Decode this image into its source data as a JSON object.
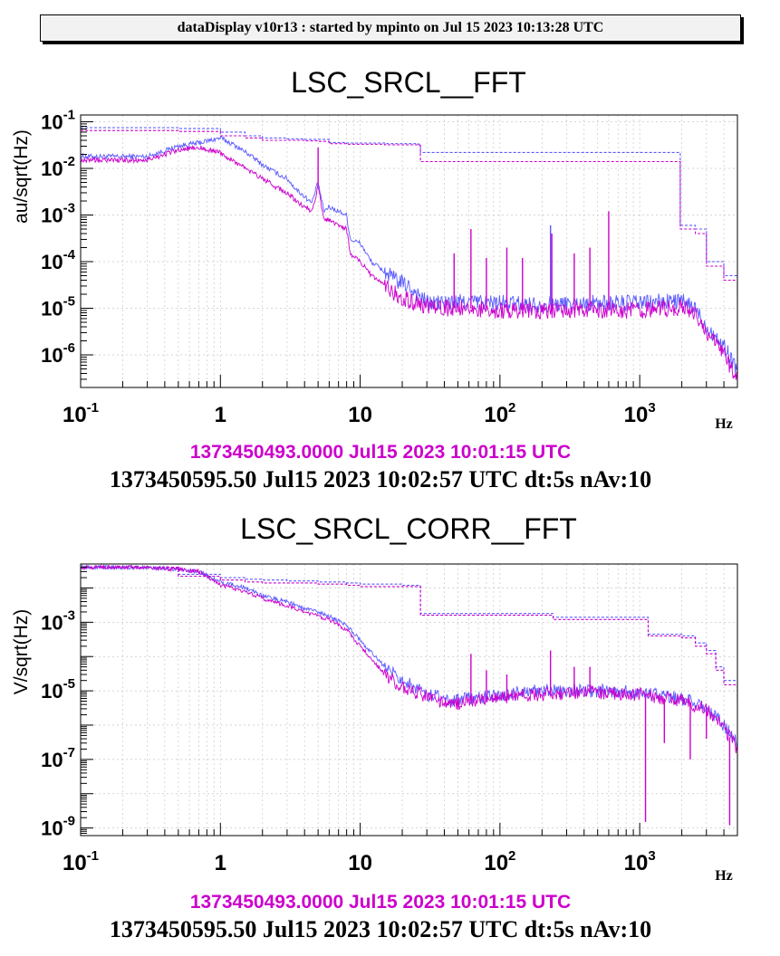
{
  "header": {
    "text": "dataDisplay v10r13 : started by mpinto on Jul 15 2023 10:13:28 UTC"
  },
  "colors": {
    "ref": "#5a5aff",
    "cur": "#cc00cc",
    "grid": "#c8c8c8"
  },
  "chart_data": [
    {
      "type": "line",
      "title": "LSC_SRCL__FFT",
      "ylabel": "au/sqrt(Hz)",
      "xunit": "Hz",
      "xscale": "log",
      "yscale": "log",
      "xlim": [
        0.1,
        5000
      ],
      "ylim": [
        2e-07,
        0.14
      ],
      "grid": true,
      "x_ticks": [
        {
          "value": 0.1,
          "base": "10",
          "exp": "-1"
        },
        {
          "value": 1,
          "base": "1",
          "exp": ""
        },
        {
          "value": 10,
          "base": "10",
          "exp": ""
        },
        {
          "value": 100,
          "base": "10",
          "exp": "2"
        },
        {
          "value": 1000,
          "base": "10",
          "exp": "3"
        }
      ],
      "y_ticks": [
        {
          "value": 0.1,
          "base": "10",
          "exp": "-1"
        },
        {
          "value": 0.01,
          "base": "10",
          "exp": "-2"
        },
        {
          "value": 0.001,
          "base": "10",
          "exp": "-3"
        },
        {
          "value": 0.0001,
          "base": "10",
          "exp": "-4"
        },
        {
          "value": 1e-05,
          "base": "10",
          "exp": "-5"
        },
        {
          "value": 1e-06,
          "base": "10",
          "exp": "-6"
        }
      ],
      "series": [
        {
          "color": "#5a5aff",
          "dash": false,
          "noise": 0.18,
          "x": [
            0.1,
            0.3,
            0.5,
            0.7,
            1,
            1.3,
            1.6,
            2,
            2.5,
            3,
            3.5,
            4,
            4.5,
            5,
            5.5,
            6,
            7,
            8,
            8.5,
            10,
            12,
            15,
            18,
            22,
            26,
            30,
            40,
            60,
            100,
            200,
            500,
            1000,
            1500,
            2000,
            2500,
            3000,
            3500,
            4000,
            5000
          ],
          "y": [
            0.018,
            0.018,
            0.03,
            0.035,
            0.045,
            0.03,
            0.02,
            0.012,
            0.008,
            0.006,
            0.0035,
            0.0025,
            0.0018,
            0.005,
            0.0012,
            0.0015,
            0.0012,
            0.001,
            0.0003,
            0.00025,
            0.0001,
            6e-05,
            4e-05,
            3e-05,
            2e-05,
            1.3e-05,
            1.3e-05,
            1.4e-05,
            1.3e-05,
            1.2e-05,
            1.3e-05,
            1.3e-05,
            1.4e-05,
            1.4e-05,
            1e-05,
            4e-06,
            2.5e-06,
            1.5e-06,
            5e-07
          ]
        },
        {
          "color": "#cc00cc",
          "dash": false,
          "noise": 0.18,
          "x": [
            0.1,
            0.3,
            0.5,
            0.7,
            1,
            1.3,
            1.6,
            2,
            2.5,
            3,
            3.5,
            4,
            4.5,
            5,
            5.5,
            6,
            7,
            8,
            8.5,
            10,
            12,
            15,
            18,
            22,
            26,
            30,
            40,
            60,
            100,
            200,
            500,
            1000,
            1500,
            2000,
            2500,
            3000,
            3500,
            4000,
            5000
          ],
          "y": [
            0.015,
            0.015,
            0.025,
            0.028,
            0.022,
            0.013,
            0.009,
            0.006,
            0.004,
            0.003,
            0.002,
            0.0015,
            0.0012,
            0.004,
            0.0008,
            0.0008,
            0.0006,
            0.0005,
            0.00015,
            0.0001,
            5e-05,
            3e-05,
            2e-05,
            1.5e-05,
            1.2e-05,
            1.1e-05,
            1e-05,
            1e-05,
            9e-06,
            9e-06,
            9e-06,
            9e-06,
            1e-05,
            1e-05,
            8e-06,
            3e-06,
            1.8e-06,
            1e-06,
            3e-07
          ]
        },
        {
          "color": "#5a5aff",
          "dash": true,
          "noise": 0,
          "x": [
            0.1,
            0.3,
            0.5,
            1,
            1.5,
            2,
            3,
            4,
            5,
            6,
            8,
            10,
            15,
            20,
            26,
            27,
            100,
            1000,
            1900,
            1950,
            2500,
            3000,
            4000,
            5000
          ],
          "y": [
            0.075,
            0.075,
            0.072,
            0.06,
            0.05,
            0.045,
            0.043,
            0.042,
            0.042,
            0.036,
            0.035,
            0.035,
            0.034,
            0.034,
            0.033,
            0.022,
            0.022,
            0.022,
            0.022,
            0.0006,
            0.0005,
            0.0001,
            5e-05,
            2e-05
          ]
        },
        {
          "color": "#cc00cc",
          "dash": true,
          "noise": 0,
          "x": [
            0.1,
            0.3,
            0.5,
            1,
            1.5,
            2,
            3,
            4,
            5,
            6,
            8,
            10,
            15,
            20,
            26,
            27,
            100,
            1000,
            1900,
            1950,
            2500,
            3000,
            4000,
            5000
          ],
          "y": [
            0.065,
            0.065,
            0.062,
            0.05,
            0.045,
            0.04,
            0.04,
            0.039,
            0.038,
            0.034,
            0.033,
            0.033,
            0.032,
            0.032,
            0.031,
            0.014,
            0.014,
            0.014,
            0.014,
            0.0005,
            0.0004,
            8e-05,
            4e-05,
            1.5e-05
          ]
        }
      ],
      "spikes": [
        {
          "x": 5,
          "y": 0.028,
          "series": 1
        },
        {
          "x": 47,
          "y": 0.00015,
          "series": 1
        },
        {
          "x": 62,
          "y": 0.0005,
          "series": 1
        },
        {
          "x": 80,
          "y": 0.00012,
          "series": 1
        },
        {
          "x": 112,
          "y": 0.0002,
          "series": 1
        },
        {
          "x": 145,
          "y": 0.00012,
          "series": 1
        },
        {
          "x": 230,
          "y": 0.0006,
          "series": 0
        },
        {
          "x": 235,
          "y": 0.0004,
          "series": 1
        },
        {
          "x": 340,
          "y": 0.00015,
          "series": 1
        },
        {
          "x": 440,
          "y": 0.0002,
          "series": 1
        },
        {
          "x": 600,
          "y": 0.0012,
          "series": 1
        }
      ],
      "timestamps": [
        "1373450493.0000 Jul15 2023 10:01:15 UTC",
        "1373450595.50 Jul15 2023 10:02:57 UTC dt:5s nAv:10"
      ]
    },
    {
      "type": "line",
      "title": "LSC_SRCL_CORR__FFT",
      "ylabel": "V/sqrt(Hz)",
      "xunit": "Hz",
      "xscale": "log",
      "yscale": "log",
      "xlim": [
        0.1,
        5000
      ],
      "ylim": [
        6e-10,
        0.05
      ],
      "grid": true,
      "x_ticks": [
        {
          "value": 0.1,
          "base": "10",
          "exp": "-1"
        },
        {
          "value": 1,
          "base": "1",
          "exp": ""
        },
        {
          "value": 10,
          "base": "10",
          "exp": ""
        },
        {
          "value": 100,
          "base": "10",
          "exp": "2"
        },
        {
          "value": 1000,
          "base": "10",
          "exp": "3"
        }
      ],
      "y_ticks": [
        {
          "value": 0.001,
          "base": "10",
          "exp": "-3"
        },
        {
          "value": 1e-05,
          "base": "10",
          "exp": "-5"
        },
        {
          "value": 1e-07,
          "base": "10",
          "exp": "-7"
        },
        {
          "value": 1e-09,
          "base": "10",
          "exp": "-9"
        }
      ],
      "series": [
        {
          "color": "#5a5aff",
          "dash": false,
          "noise": 0.2,
          "x": [
            0.1,
            0.3,
            0.5,
            0.7,
            1,
            1.5,
            2,
            3,
            4,
            5,
            6,
            8,
            10,
            15,
            20,
            30,
            45,
            60,
            100,
            200,
            500,
            1000,
            1200,
            1500,
            2000,
            3000,
            4000,
            5000
          ],
          "y": [
            0.04,
            0.04,
            0.035,
            0.03,
            0.015,
            0.01,
            0.006,
            0.004,
            0.0025,
            0.002,
            0.0015,
            0.0008,
            0.0003,
            5e-05,
            2e-05,
            8e-06,
            5e-06,
            6e-06,
            8e-06,
            1e-05,
            1e-05,
            9.5e-06,
            8.5e-06,
            7e-06,
            6e-06,
            3.5e-06,
            1e-06,
            3e-07
          ]
        },
        {
          "color": "#cc00cc",
          "dash": false,
          "noise": 0.2,
          "x": [
            0.1,
            0.3,
            0.5,
            0.7,
            1,
            1.5,
            2,
            3,
            4,
            5,
            6,
            8,
            10,
            15,
            20,
            30,
            45,
            60,
            100,
            200,
            500,
            1000,
            1200,
            1500,
            2000,
            3000,
            4000,
            5000
          ],
          "y": [
            0.04,
            0.04,
            0.035,
            0.03,
            0.012,
            0.008,
            0.005,
            0.003,
            0.002,
            0.0015,
            0.0012,
            0.0006,
            0.0002,
            3e-05,
            1.2e-05,
            7e-06,
            4e-06,
            5e-06,
            6.5e-06,
            8e-06,
            9e-06,
            8e-06,
            7e-06,
            6e-06,
            5e-06,
            3e-06,
            8e-07,
            2e-07
          ]
        },
        {
          "color": "#5a5aff",
          "dash": true,
          "noise": 0,
          "x": [
            0.1,
            0.3,
            0.5,
            1,
            1.5,
            2,
            3,
            5,
            8,
            10,
            20,
            26,
            27,
            100,
            230,
            240,
            1100,
            1150,
            2000,
            2500,
            3000,
            3500,
            4000,
            5000
          ],
          "y": [
            0.04,
            0.04,
            0.025,
            0.02,
            0.018,
            0.017,
            0.016,
            0.015,
            0.014,
            0.013,
            0.012,
            0.012,
            0.0018,
            0.0018,
            0.0018,
            0.0014,
            0.0014,
            0.00045,
            0.0004,
            0.00025,
            0.00015,
            5e-05,
            2e-05,
            6e-06
          ]
        },
        {
          "color": "#cc00cc",
          "dash": true,
          "noise": 0,
          "x": [
            0.1,
            0.3,
            0.5,
            1,
            1.5,
            2,
            3,
            5,
            8,
            10,
            20,
            26,
            27,
            100,
            230,
            240,
            1100,
            1150,
            2000,
            2500,
            3000,
            3500,
            4000,
            5000
          ],
          "y": [
            0.04,
            0.04,
            0.022,
            0.017,
            0.015,
            0.014,
            0.014,
            0.013,
            0.012,
            0.011,
            0.011,
            0.011,
            0.0016,
            0.0016,
            0.0016,
            0.0012,
            0.0012,
            0.0004,
            0.00035,
            0.0002,
            0.00012,
            4e-05,
            1.5e-05,
            5e-06
          ]
        }
      ],
      "spikes": [
        {
          "x": 62,
          "y": 0.00012,
          "series": 1
        },
        {
          "x": 80,
          "y": 4e-05,
          "series": 1
        },
        {
          "x": 112,
          "y": 3e-05,
          "series": 1
        },
        {
          "x": 230,
          "y": 0.00015,
          "series": 1
        },
        {
          "x": 340,
          "y": 5e-05,
          "series": 1
        },
        {
          "x": 440,
          "y": 5e-05,
          "series": 1
        },
        {
          "x": 1100,
          "y": 1.5e-09,
          "series": 1
        },
        {
          "x": 1500,
          "y": 3e-07,
          "series": 1
        },
        {
          "x": 2300,
          "y": 1e-07,
          "series": 1
        },
        {
          "x": 3000,
          "y": 4e-07,
          "series": 1
        },
        {
          "x": 4400,
          "y": 1.2e-09,
          "series": 1
        }
      ],
      "timestamps": [
        "1373450493.0000 Jul15 2023 10:01:15 UTC",
        "1373450595.50 Jul15 2023 10:02:57 UTC dt:5s nAv:10"
      ]
    }
  ]
}
